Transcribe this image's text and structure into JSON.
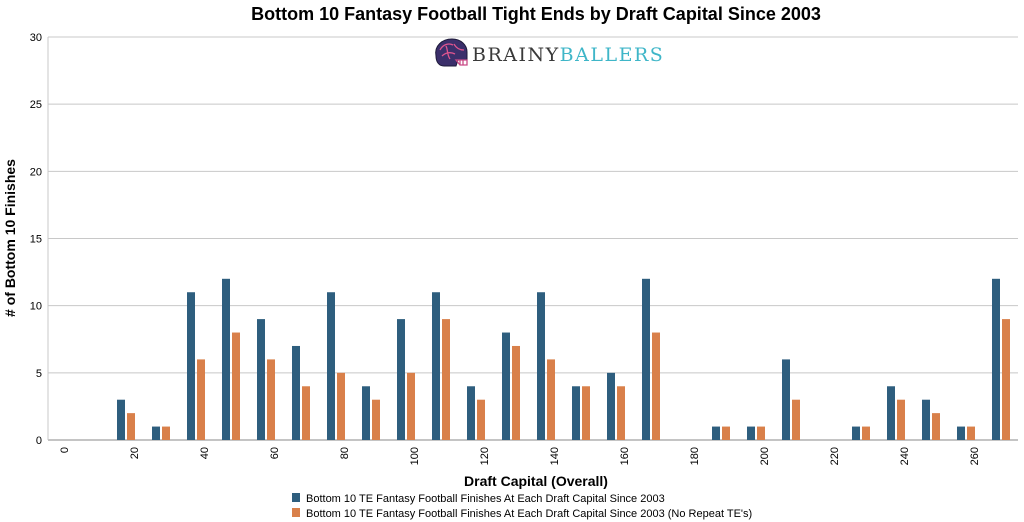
{
  "chart_data": {
    "type": "bar",
    "title": "Bottom 10 Fantasy Football Tight Ends by Draft Capital Since 2003",
    "xlabel": "Draft Capital (Overall)",
    "ylabel": "# of Bottom 10 Finishes",
    "ylim": [
      0,
      30
    ],
    "yticks": [
      "0",
      "5",
      "10",
      "15",
      "20",
      "25",
      "30"
    ],
    "grid": true,
    "legend_position": "bottom",
    "categories": [
      "0",
      "10",
      "20",
      "30",
      "40",
      "50",
      "60",
      "70",
      "80",
      "90",
      "100",
      "110",
      "120",
      "130",
      "140",
      "150",
      "160",
      "170",
      "180",
      "190",
      "200",
      "210",
      "220",
      "230",
      "240",
      "250",
      "260"
    ],
    "xtick_labels": [
      "0",
      "",
      "20",
      "",
      "40",
      "",
      "60",
      "",
      "80",
      "",
      "100",
      "",
      "120",
      "",
      "140",
      "",
      "160",
      "",
      "180",
      "",
      "200",
      "",
      "220",
      "",
      "240",
      "",
      "260"
    ],
    "series": [
      {
        "name": "Bottom 10 TE Fantasy Football Finishes At Each Draft Capital Since 2003",
        "color": "#2e5e7e",
        "values": [
          0,
          3,
          1,
          11,
          12,
          9,
          7,
          11,
          4,
          9,
          11,
          4,
          8,
          11,
          4,
          5,
          12,
          0,
          1,
          1,
          6,
          0,
          1,
          4,
          3,
          1,
          12
        ]
      },
      {
        "name": "Bottom 10 TE Fantasy Football Finishes At Each Draft Capital Since 2003 (No Repeat TE's)",
        "color": "#d9804a",
        "values": [
          0,
          2,
          1,
          6,
          8,
          6,
          4,
          5,
          3,
          5,
          9,
          3,
          7,
          6,
          4,
          4,
          8,
          0,
          1,
          1,
          3,
          0,
          1,
          3,
          2,
          1,
          9
        ]
      }
    ]
  },
  "logo": {
    "text_part1": "BRAINY",
    "text_part2": "BALLERS",
    "icon": "helmet-brain-icon",
    "color_part1": "#3a3a3a",
    "color_part2": "#3fb6c8"
  }
}
